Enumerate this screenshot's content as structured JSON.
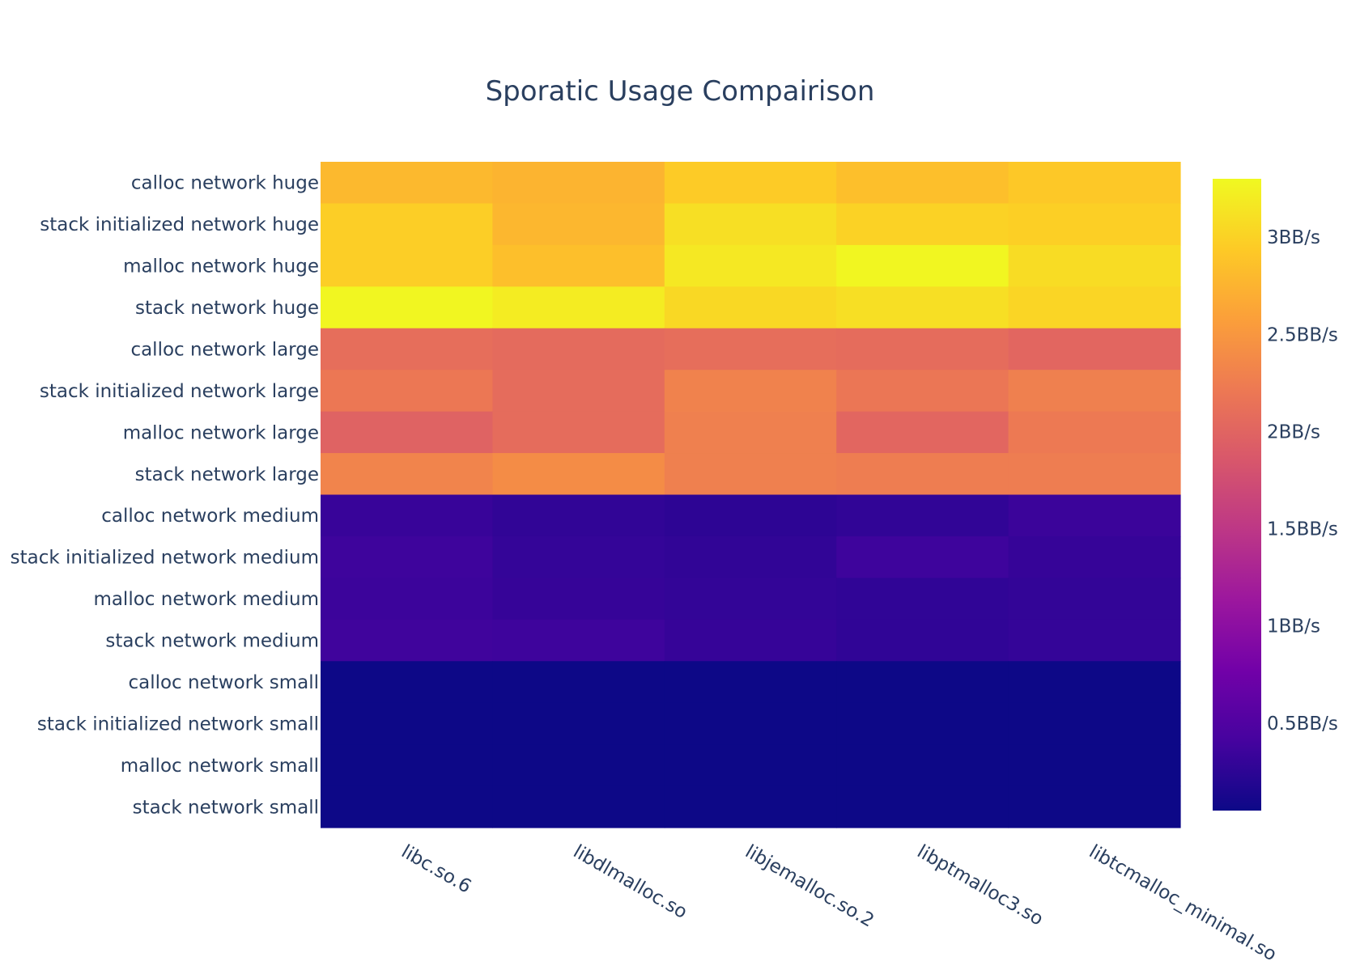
{
  "chart_data": {
    "type": "heatmap",
    "title": "Sporatic Usage Compairison",
    "xlabel": "",
    "ylabel": "",
    "x": [
      "libc.so.6",
      "libdlmalloc.so",
      "libjemalloc.so.2",
      "libptmalloc3.so",
      "libtcmalloc_minimal.so"
    ],
    "y": [
      "calloc network huge",
      "stack initialized network huge",
      "malloc network huge",
      "stack network huge",
      "calloc network large",
      "stack initialized network large",
      "malloc network large",
      "stack network large",
      "calloc network medium",
      "stack initialized network medium",
      "malloc network medium",
      "stack network medium",
      "calloc network small",
      "stack initialized network small",
      "malloc network small",
      "stack network small"
    ],
    "z": [
      [
        2.8,
        2.75,
        2.95,
        2.85,
        2.92
      ],
      [
        2.97,
        2.78,
        3.1,
        3.0,
        2.98
      ],
      [
        2.97,
        2.85,
        3.17,
        3.28,
        3.08
      ],
      [
        3.28,
        3.2,
        3.05,
        3.1,
        3.02
      ],
      [
        2.1,
        2.07,
        2.1,
        2.08,
        2.02
      ],
      [
        2.2,
        2.08,
        2.3,
        2.18,
        2.28
      ],
      [
        1.98,
        2.08,
        2.28,
        2.02,
        2.22
      ],
      [
        2.32,
        2.4,
        2.28,
        2.25,
        2.25
      ],
      [
        0.32,
        0.28,
        0.25,
        0.28,
        0.34
      ],
      [
        0.36,
        0.3,
        0.28,
        0.36,
        0.31
      ],
      [
        0.35,
        0.31,
        0.29,
        0.27,
        0.29
      ],
      [
        0.37,
        0.36,
        0.31,
        0.27,
        0.3
      ],
      [
        0.05,
        0.05,
        0.05,
        0.05,
        0.05
      ],
      [
        0.05,
        0.05,
        0.05,
        0.05,
        0.05
      ],
      [
        0.05,
        0.05,
        0.05,
        0.05,
        0.05
      ],
      [
        0.05,
        0.05,
        0.05,
        0.05,
        0.05
      ]
    ],
    "zrange": [
      0.05,
      3.3
    ],
    "colorscale": "plasma",
    "colorbar": {
      "ticks": [
        0.5,
        1,
        1.5,
        2,
        2.5,
        3
      ],
      "ticklabels": [
        "0.5BB/s",
        "1BB/s",
        "1.5BB/s",
        "2BB/s",
        "2.5BB/s",
        "3BB/s"
      ],
      "placement": "right"
    },
    "colors": {
      "plasma": [
        "#0d0887",
        "#46039f",
        "#7201a8",
        "#9c179e",
        "#bd3786",
        "#d8576b",
        "#ed7953",
        "#fb9f3a",
        "#fdca26",
        "#f0f921"
      ],
      "text": "#2a3f5f",
      "background": "#ffffff"
    }
  }
}
